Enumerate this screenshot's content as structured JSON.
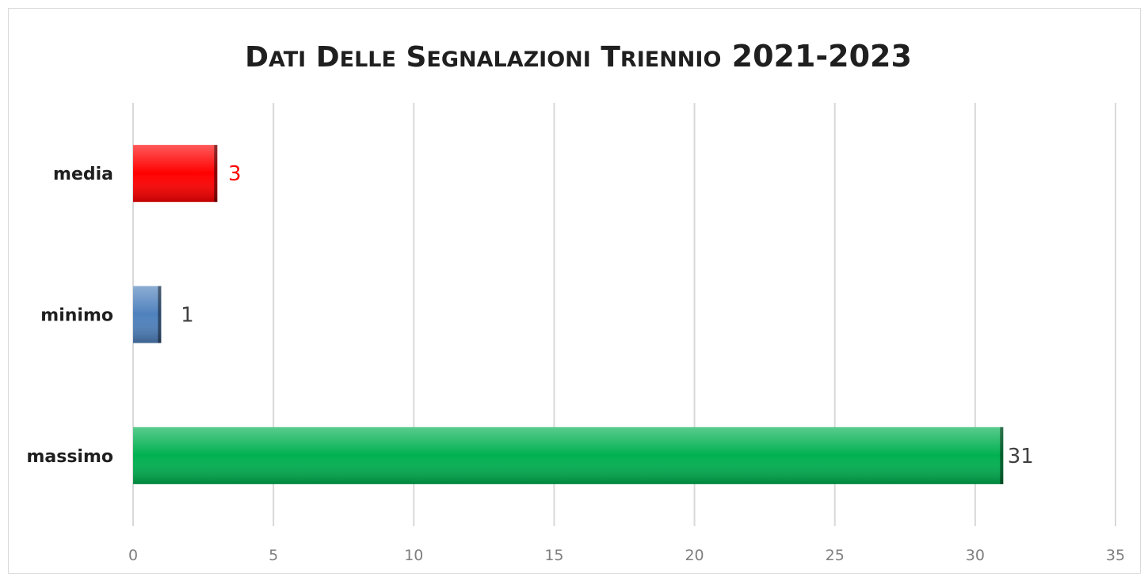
{
  "chart_data": {
    "type": "bar",
    "orientation": "horizontal",
    "title": "Dati delle segnalazioni triennio 2021-2023",
    "categories": [
      "media",
      "minimo",
      "massimo"
    ],
    "values": [
      3,
      1,
      31
    ],
    "bar_colors": [
      "#ff0000",
      "#4f81bd",
      "#00b050"
    ],
    "data_label_colors": [
      "#ff0000",
      "#404040",
      "#404040"
    ],
    "xlim": [
      0,
      35
    ],
    "xticks": [
      "0",
      "5",
      "10",
      "15",
      "20",
      "25",
      "30",
      "35"
    ],
    "xlabel": "",
    "ylabel": "",
    "grid": true,
    "legend": "none"
  }
}
